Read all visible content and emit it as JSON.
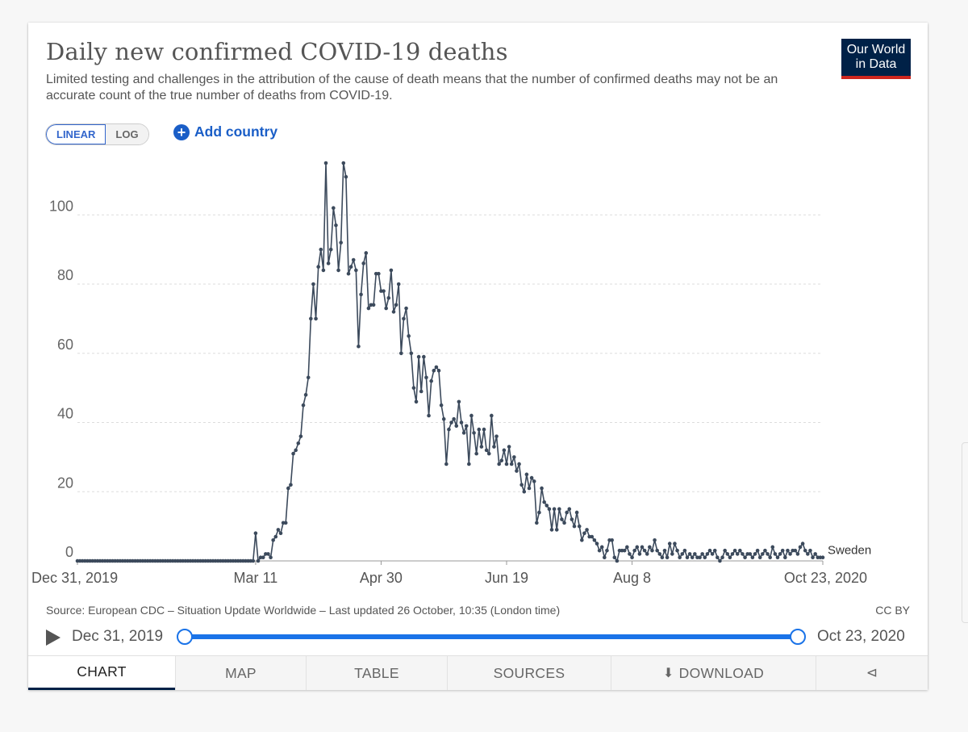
{
  "header": {
    "title": "Daily new confirmed COVID-19 deaths",
    "subtitle": "Limited testing and challenges in the attribution of the cause of death means that the number of confirmed deaths may not be an accurate count of the true number of deaths from COVID-19.",
    "logo_line1": "Our World",
    "logo_line2": "in Data"
  },
  "controls": {
    "linear_label": "LINEAR",
    "log_label": "LOG",
    "add_country_label": "Add country",
    "active_scale": "linear"
  },
  "footer": {
    "source": "Source: European CDC – Situation Update Worldwide – Last updated 26 October, 10:35 (London time)",
    "license": "CC BY"
  },
  "timeline": {
    "start_label": "Dec 31, 2019",
    "end_label": "Oct 23, 2020"
  },
  "tabs": [
    {
      "label": "CHART",
      "active": true
    },
    {
      "label": "MAP",
      "active": false
    },
    {
      "label": "TABLE",
      "active": false
    },
    {
      "label": "SOURCES",
      "active": false
    },
    {
      "label": "DOWNLOAD",
      "active": false
    },
    {
      "label": "",
      "active": false
    }
  ],
  "colors": {
    "line": "#3c4a5c",
    "accent": "#1a73e8",
    "logo_bg": "#002147",
    "logo_red": "#ce261e"
  },
  "chart_data": {
    "type": "line",
    "title": "Daily new confirmed COVID-19 deaths",
    "x_start": "2019-12-31",
    "x_end": "2020-10-23",
    "x_ticks": [
      {
        "date": "2019-12-31",
        "label": "Dec 31, 2019"
      },
      {
        "date": "2020-03-11",
        "label": "Mar 11"
      },
      {
        "date": "2020-04-30",
        "label": "Apr 30"
      },
      {
        "date": "2020-06-19",
        "label": "Jun 19"
      },
      {
        "date": "2020-08-08",
        "label": "Aug 8"
      },
      {
        "date": "2020-10-23",
        "label": "Oct 23, 2020"
      }
    ],
    "y_ticks": [
      0,
      20,
      40,
      60,
      80,
      100
    ],
    "ylim": [
      0,
      115
    ],
    "grid": true,
    "series": [
      {
        "name": "Sweden",
        "data": [
          [
            "2020-03-11",
            8
          ],
          [
            "2020-03-12",
            0
          ],
          [
            "2020-03-13",
            1
          ],
          [
            "2020-03-14",
            1
          ],
          [
            "2020-03-15",
            2
          ],
          [
            "2020-03-16",
            2
          ],
          [
            "2020-03-17",
            1
          ],
          [
            "2020-03-18",
            6
          ],
          [
            "2020-03-19",
            7
          ],
          [
            "2020-03-20",
            9
          ],
          [
            "2020-03-21",
            8
          ],
          [
            "2020-03-22",
            11
          ],
          [
            "2020-03-23",
            11
          ],
          [
            "2020-03-24",
            21
          ],
          [
            "2020-03-25",
            22
          ],
          [
            "2020-03-26",
            31
          ],
          [
            "2020-03-27",
            32
          ],
          [
            "2020-03-28",
            34
          ],
          [
            "2020-03-29",
            36
          ],
          [
            "2020-03-30",
            45
          ],
          [
            "2020-03-31",
            48
          ],
          [
            "2020-04-01",
            53
          ],
          [
            "2020-04-02",
            70
          ],
          [
            "2020-04-03",
            80
          ],
          [
            "2020-04-04",
            70
          ],
          [
            "2020-04-05",
            85
          ],
          [
            "2020-04-06",
            90
          ],
          [
            "2020-04-07",
            84
          ],
          [
            "2020-04-08",
            115
          ],
          [
            "2020-04-09",
            86
          ],
          [
            "2020-04-10",
            90
          ],
          [
            "2020-04-11",
            102
          ],
          [
            "2020-04-12",
            97
          ],
          [
            "2020-04-13",
            84
          ],
          [
            "2020-04-14",
            92
          ],
          [
            "2020-04-15",
            115
          ],
          [
            "2020-04-16",
            111
          ],
          [
            "2020-04-17",
            83
          ],
          [
            "2020-04-18",
            85
          ],
          [
            "2020-04-19",
            87
          ],
          [
            "2020-04-20",
            84
          ],
          [
            "2020-04-21",
            62
          ],
          [
            "2020-04-22",
            77
          ],
          [
            "2020-04-23",
            86
          ],
          [
            "2020-04-24",
            89
          ],
          [
            "2020-04-25",
            73
          ],
          [
            "2020-04-26",
            74
          ],
          [
            "2020-04-27",
            74
          ],
          [
            "2020-04-28",
            83
          ],
          [
            "2020-04-29",
            83
          ],
          [
            "2020-04-30",
            78
          ],
          [
            "2020-05-01",
            78
          ],
          [
            "2020-05-02",
            73
          ],
          [
            "2020-05-03",
            76
          ],
          [
            "2020-05-04",
            84
          ],
          [
            "2020-05-05",
            72
          ],
          [
            "2020-05-06",
            74
          ],
          [
            "2020-05-07",
            80
          ],
          [
            "2020-05-08",
            60
          ],
          [
            "2020-05-09",
            70
          ],
          [
            "2020-05-10",
            73
          ],
          [
            "2020-05-11",
            65
          ],
          [
            "2020-05-12",
            60
          ],
          [
            "2020-05-13",
            50
          ],
          [
            "2020-05-14",
            46
          ],
          [
            "2020-05-15",
            59
          ],
          [
            "2020-05-16",
            49
          ],
          [
            "2020-05-17",
            59
          ],
          [
            "2020-05-18",
            53
          ],
          [
            "2020-05-19",
            42
          ],
          [
            "2020-05-20",
            52
          ],
          [
            "2020-05-21",
            55
          ],
          [
            "2020-05-22",
            56
          ],
          [
            "2020-05-23",
            55
          ],
          [
            "2020-05-24",
            45
          ],
          [
            "2020-05-25",
            41
          ],
          [
            "2020-05-26",
            28
          ],
          [
            "2020-05-27",
            38
          ],
          [
            "2020-05-28",
            40
          ],
          [
            "2020-05-29",
            41
          ],
          [
            "2020-05-30",
            39
          ],
          [
            "2020-05-31",
            46
          ],
          [
            "2020-06-01",
            40
          ],
          [
            "2020-06-02",
            37
          ],
          [
            "2020-06-03",
            39
          ],
          [
            "2020-06-04",
            28
          ],
          [
            "2020-06-05",
            42
          ],
          [
            "2020-06-06",
            37
          ],
          [
            "2020-06-07",
            31
          ],
          [
            "2020-06-08",
            38
          ],
          [
            "2020-06-09",
            33
          ],
          [
            "2020-06-10",
            38
          ],
          [
            "2020-06-11",
            32
          ],
          [
            "2020-06-12",
            31
          ],
          [
            "2020-06-13",
            42
          ],
          [
            "2020-06-14",
            33
          ],
          [
            "2020-06-15",
            36
          ],
          [
            "2020-06-16",
            28
          ],
          [
            "2020-06-17",
            29
          ],
          [
            "2020-06-18",
            32
          ],
          [
            "2020-06-19",
            28
          ],
          [
            "2020-06-20",
            33
          ],
          [
            "2020-06-21",
            28
          ],
          [
            "2020-06-22",
            30
          ],
          [
            "2020-06-23",
            26
          ],
          [
            "2020-06-24",
            28
          ],
          [
            "2020-06-25",
            22
          ],
          [
            "2020-06-26",
            20
          ],
          [
            "2020-06-27",
            25
          ],
          [
            "2020-06-28",
            21
          ],
          [
            "2020-06-29",
            24
          ],
          [
            "2020-06-30",
            23
          ],
          [
            "2020-07-01",
            11
          ],
          [
            "2020-07-02",
            14
          ],
          [
            "2020-07-03",
            21
          ],
          [
            "2020-07-04",
            17
          ],
          [
            "2020-07-05",
            16
          ],
          [
            "2020-07-06",
            15
          ],
          [
            "2020-07-07",
            9
          ],
          [
            "2020-07-08",
            15
          ],
          [
            "2020-07-09",
            9
          ],
          [
            "2020-07-10",
            15
          ],
          [
            "2020-07-11",
            12
          ],
          [
            "2020-07-12",
            11
          ],
          [
            "2020-07-13",
            14
          ],
          [
            "2020-07-14",
            15
          ],
          [
            "2020-07-15",
            12
          ],
          [
            "2020-07-16",
            10
          ],
          [
            "2020-07-17",
            14
          ],
          [
            "2020-07-18",
            10
          ],
          [
            "2020-07-19",
            6
          ],
          [
            "2020-07-20",
            8
          ],
          [
            "2020-07-21",
            9
          ],
          [
            "2020-07-22",
            7
          ],
          [
            "2020-07-23",
            7
          ],
          [
            "2020-07-24",
            6
          ],
          [
            "2020-07-25",
            5
          ],
          [
            "2020-07-26",
            3
          ],
          [
            "2020-07-27",
            4
          ],
          [
            "2020-07-28",
            1
          ],
          [
            "2020-07-29",
            3
          ],
          [
            "2020-07-30",
            6
          ],
          [
            "2020-07-31",
            6
          ],
          [
            "2020-08-01",
            1
          ],
          [
            "2020-08-02",
            0
          ],
          [
            "2020-08-03",
            3
          ],
          [
            "2020-08-04",
            3
          ],
          [
            "2020-08-05",
            3
          ],
          [
            "2020-08-06",
            4
          ],
          [
            "2020-08-07",
            2
          ],
          [
            "2020-08-08",
            1
          ],
          [
            "2020-08-09",
            3
          ],
          [
            "2020-08-10",
            4
          ],
          [
            "2020-08-11",
            2
          ],
          [
            "2020-08-12",
            4
          ],
          [
            "2020-08-13",
            3
          ],
          [
            "2020-08-14",
            2
          ],
          [
            "2020-08-15",
            4
          ],
          [
            "2020-08-16",
            3
          ],
          [
            "2020-08-17",
            6
          ],
          [
            "2020-08-18",
            3
          ],
          [
            "2020-08-19",
            2
          ],
          [
            "2020-08-20",
            1
          ],
          [
            "2020-08-21",
            3
          ],
          [
            "2020-08-22",
            1
          ],
          [
            "2020-08-23",
            5
          ],
          [
            "2020-08-24",
            2
          ],
          [
            "2020-08-25",
            5
          ],
          [
            "2020-08-26",
            3
          ],
          [
            "2020-08-27",
            1
          ],
          [
            "2020-08-28",
            2
          ],
          [
            "2020-08-29",
            3
          ],
          [
            "2020-08-30",
            1
          ],
          [
            "2020-08-31",
            2
          ],
          [
            "2020-09-01",
            1
          ],
          [
            "2020-09-02",
            2
          ],
          [
            "2020-09-03",
            1
          ],
          [
            "2020-09-04",
            1
          ],
          [
            "2020-09-05",
            2
          ],
          [
            "2020-09-06",
            1
          ],
          [
            "2020-09-07",
            2
          ],
          [
            "2020-09-08",
            3
          ],
          [
            "2020-09-09",
            2
          ],
          [
            "2020-09-10",
            3
          ],
          [
            "2020-09-11",
            1
          ],
          [
            "2020-09-12",
            0
          ],
          [
            "2020-09-13",
            1
          ],
          [
            "2020-09-14",
            3
          ],
          [
            "2020-09-15",
            2
          ],
          [
            "2020-09-16",
            1
          ],
          [
            "2020-09-17",
            2
          ],
          [
            "2020-09-18",
            3
          ],
          [
            "2020-09-19",
            2
          ],
          [
            "2020-09-20",
            3
          ],
          [
            "2020-09-21",
            2
          ],
          [
            "2020-09-22",
            1
          ],
          [
            "2020-09-23",
            2
          ],
          [
            "2020-09-24",
            2
          ],
          [
            "2020-09-25",
            1
          ],
          [
            "2020-09-26",
            2
          ],
          [
            "2020-09-27",
            3
          ],
          [
            "2020-09-28",
            1
          ],
          [
            "2020-09-29",
            2
          ],
          [
            "2020-09-30",
            3
          ],
          [
            "2020-10-01",
            2
          ],
          [
            "2020-10-02",
            1
          ],
          [
            "2020-10-03",
            4
          ],
          [
            "2020-10-04",
            2
          ],
          [
            "2020-10-05",
            1
          ],
          [
            "2020-10-06",
            2
          ],
          [
            "2020-10-07",
            3
          ],
          [
            "2020-10-08",
            1
          ],
          [
            "2020-10-09",
            3
          ],
          [
            "2020-10-10",
            2
          ],
          [
            "2020-10-11",
            3
          ],
          [
            "2020-10-12",
            3
          ],
          [
            "2020-10-13",
            2
          ],
          [
            "2020-10-14",
            4
          ],
          [
            "2020-10-15",
            5
          ],
          [
            "2020-10-16",
            3
          ],
          [
            "2020-10-17",
            2
          ],
          [
            "2020-10-18",
            3
          ],
          [
            "2020-10-19",
            1
          ],
          [
            "2020-10-20",
            2
          ],
          [
            "2020-10-21",
            1
          ],
          [
            "2020-10-22",
            1
          ],
          [
            "2020-10-23",
            1
          ]
        ]
      }
    ]
  }
}
